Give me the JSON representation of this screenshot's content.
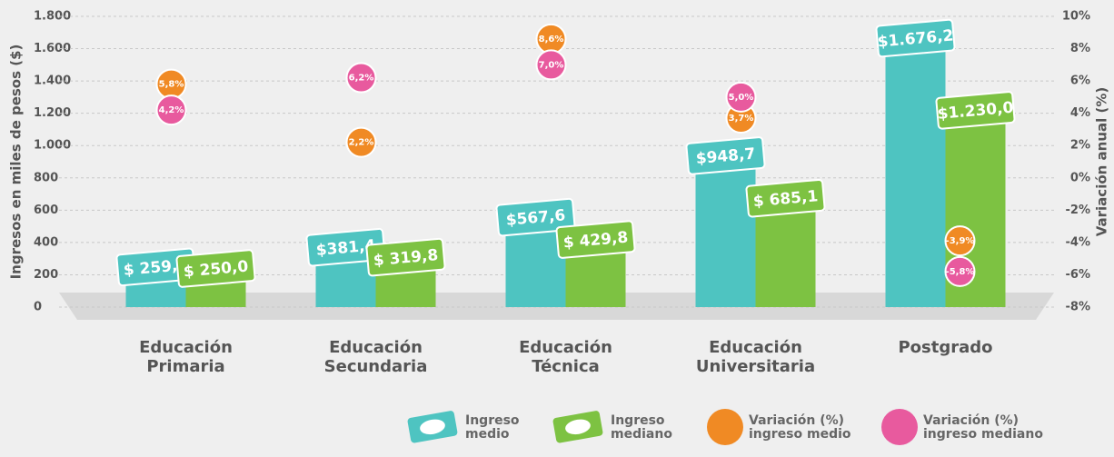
{
  "chart_data": {
    "type": "bar",
    "ylabel": "Ingresos en miles de pesos ($)",
    "y2label": "Variación anual (%)",
    "categories": [
      "Educación Primaria",
      "Educación Secundaria",
      "Educación Técnica",
      "Educación Universitaria",
      "Postgrado"
    ],
    "series": [
      {
        "name": "Ingreso medio",
        "color": "#4ec4c1",
        "values": [
          259.7,
          381.4,
          567.6,
          948.7,
          1676.2
        ],
        "value_labels": [
          "$ 259,7",
          "$381,4",
          "$567,6",
          "$948,7",
          "$1.676,2"
        ]
      },
      {
        "name": "Ingreso mediano",
        "color": "#7dc242",
        "values": [
          250.0,
          319.8,
          429.8,
          685.1,
          1230.0
        ],
        "value_labels": [
          "$ 250,0",
          "$ 319,8",
          "$ 429,8",
          "$ 685,1",
          "$1.230,0"
        ]
      },
      {
        "name": "Variación (%) ingreso medio",
        "color": "#f08a24",
        "axis": "y2",
        "values": [
          5.8,
          2.2,
          8.6,
          3.7,
          -3.9
        ],
        "value_labels": [
          "5,8%",
          "2,2%",
          "8,6%",
          "3,7%",
          "-3,9%"
        ]
      },
      {
        "name": "Variación (%) ingreso mediano",
        "color": "#e85a9e",
        "axis": "y2",
        "values": [
          4.2,
          6.2,
          7.0,
          5.0,
          -5.8
        ],
        "value_labels": [
          "4,2%",
          "6,2%",
          "7,0%",
          "5,0%",
          "-5,8%"
        ]
      }
    ],
    "ylim": [
      0,
      1800
    ],
    "yticks": [
      0,
      200,
      400,
      600,
      800,
      {
        "value": 1000,
        "label": "1.000"
      },
      {
        "value": 1200,
        "label": "1.200"
      },
      {
        "value": 1400,
        "label": "1.400"
      },
      {
        "value": 1600,
        "label": "1.600"
      },
      {
        "value": 1800,
        "label": "1.800"
      }
    ],
    "y2lim": [
      -8,
      10
    ],
    "y2ticks": [
      {
        "value": -8,
        "label": "-8%"
      },
      {
        "value": -6,
        "label": "-6%"
      },
      {
        "value": -4,
        "label": "-4%"
      },
      {
        "value": -2,
        "label": "-2%"
      },
      {
        "value": 0,
        "label": "0%"
      },
      {
        "value": 2,
        "label": "2%"
      },
      {
        "value": 4,
        "label": "4%"
      },
      {
        "value": 6,
        "label": "6%"
      },
      {
        "value": 8,
        "label": "8%"
      },
      {
        "value": 10,
        "label": "10%"
      }
    ],
    "grid": true
  }
}
